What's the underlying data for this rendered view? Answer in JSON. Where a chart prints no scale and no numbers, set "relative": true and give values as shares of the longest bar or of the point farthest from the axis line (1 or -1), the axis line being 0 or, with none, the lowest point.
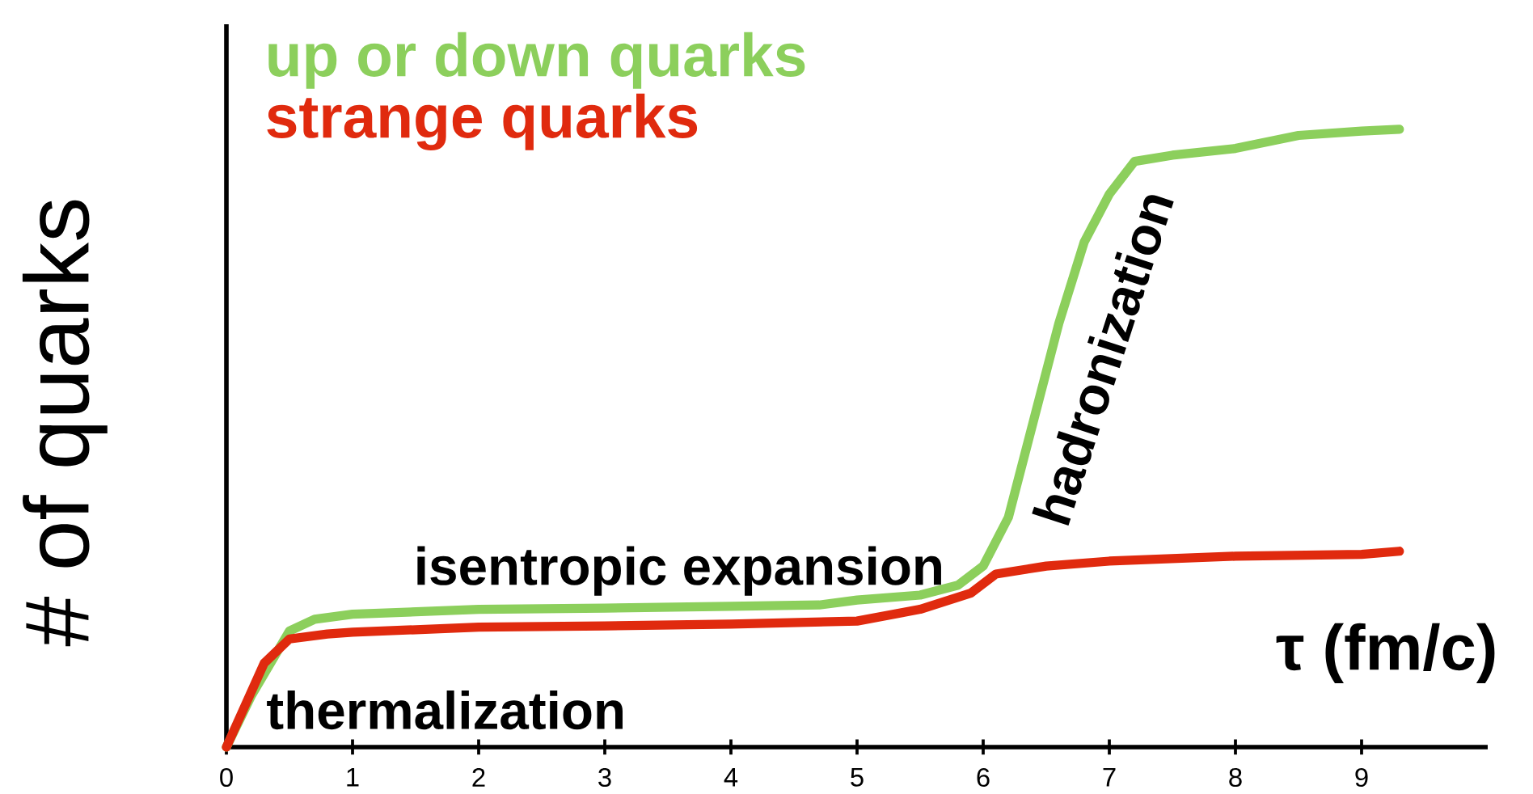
{
  "chart_data": {
    "type": "line",
    "relative": true,
    "xlabel": "τ (fm/c)",
    "ylabel": "# of quarks",
    "xlim": [
      0,
      10
    ],
    "xticks": [
      0,
      1,
      2,
      3,
      4,
      5,
      6,
      7,
      8,
      9
    ],
    "tick_labels": "x",
    "legend": "top left",
    "annotations": [
      "thermalization",
      "isentropic expansion",
      "hadronization"
    ],
    "series": [
      {
        "name": "up or down quarks",
        "color": "#8ccf5c",
        "x": [
          0,
          0.2,
          0.5,
          0.7,
          1,
          2,
          3,
          4,
          4.7,
          5,
          5.5,
          5.8,
          6,
          6.2,
          6.4,
          6.6,
          6.8,
          7,
          7.2,
          7.5,
          8,
          8.5,
          9,
          9.3
        ],
        "values": [
          0,
          0.084,
          0.188,
          0.207,
          0.215,
          0.223,
          0.225,
          0.228,
          0.23,
          0.238,
          0.246,
          0.262,
          0.293,
          0.372,
          0.529,
          0.686,
          0.817,
          0.895,
          0.948,
          0.958,
          0.969,
          0.99,
          0.997,
          1
        ]
      },
      {
        "name": "strange quarks",
        "color": "#e02a0e",
        "x": [
          0,
          0.3,
          0.5,
          0.8,
          1,
          2,
          3,
          4,
          5,
          5.5,
          5.9,
          6.1,
          6.5,
          7,
          8,
          9,
          9.3
        ],
        "values": [
          0,
          0.136,
          0.175,
          0.183,
          0.186,
          0.194,
          0.196,
          0.199,
          0.204,
          0.223,
          0.249,
          0.28,
          0.293,
          0.301,
          0.309,
          0.312,
          0.317
        ]
      }
    ]
  }
}
